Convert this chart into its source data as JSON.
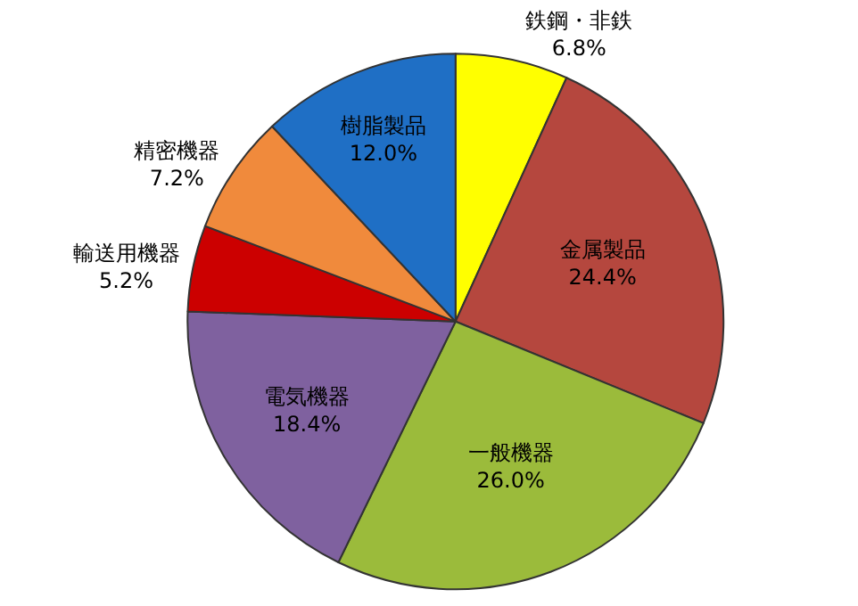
{
  "chart_data": {
    "type": "pie",
    "categories": [
      "鉄鋼・非鉄",
      "金属製品",
      "一般機器",
      "電気機器",
      "輸送用機器",
      "精密機器",
      "樹脂製品"
    ],
    "values": [
      6.8,
      24.4,
      26.0,
      18.4,
      5.2,
      7.2,
      12.0
    ],
    "value_labels": [
      "6.8%",
      "24.4%",
      "26.0%",
      "18.4%",
      "5.2%",
      "7.2%",
      "12.0%"
    ],
    "colors": [
      "#ffff00",
      "#b5473e",
      "#9bbb3b",
      "#7f619f",
      "#cc0000",
      "#f08a3c",
      "#1f6fc5"
    ],
    "legend": false
  }
}
